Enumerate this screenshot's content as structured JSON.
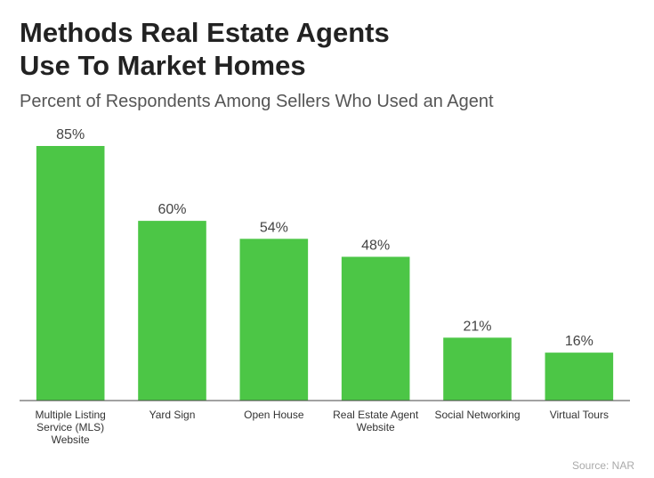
{
  "chart_data": {
    "type": "bar",
    "title": "Methods Real Estate Agents Use To Market Homes",
    "subtitle": "Percent of Respondents Among Sellers Who Used an Agent",
    "categories": [
      "Multiple Listing Service (MLS) Website",
      "Yard Sign",
      "Open House",
      "Real Estate Agent Website",
      "Social Networking",
      "Virtual Tours"
    ],
    "values": [
      85,
      60,
      54,
      48,
      21,
      16
    ],
    "value_labels": [
      "85%",
      "60%",
      "54%",
      "48%",
      "21%",
      "16%"
    ],
    "color": "#4cc646",
    "source": "Source: NAR"
  }
}
